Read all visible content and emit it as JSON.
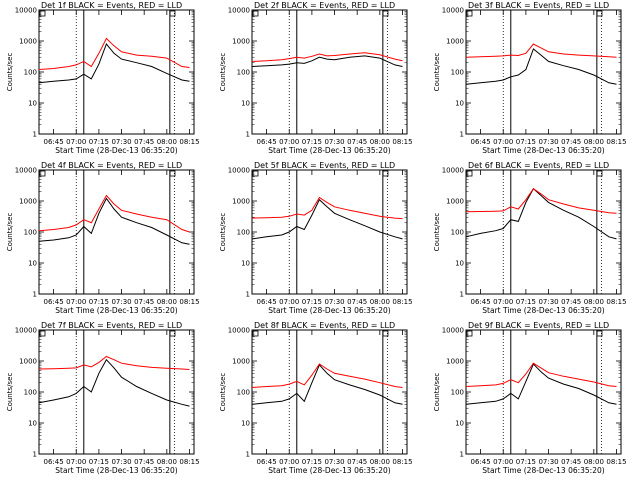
{
  "chart_data": [
    {
      "type": "line",
      "title": "Det 1f BLACK = Events, RED = LLD",
      "xlabel": "Start Time (28-Dec-13 06:35:20)",
      "ylabel": "Counts/sec",
      "xticks": [
        "06:45",
        "07:00",
        "07:15",
        "07:30",
        "07:45",
        "08:00",
        "08:15"
      ],
      "yticks": [
        "1",
        "10",
        "100",
        "1000",
        "10000"
      ],
      "yscale": "log",
      "ylim": [
        1,
        10000
      ],
      "xlim": [
        "06:35:20",
        "08:18:00"
      ],
      "series": [
        {
          "color": "#000000",
          "x": [
            "06:35",
            "06:45",
            "06:55",
            "07:00",
            "07:05",
            "07:10",
            "07:15",
            "07:20",
            "07:25",
            "07:30",
            "07:40",
            "07:50",
            "08:00",
            "08:10",
            "08:15"
          ],
          "values": [
            45,
            50,
            55,
            60,
            85,
            60,
            180,
            800,
            400,
            260,
            200,
            150,
            90,
            55,
            50
          ]
        },
        {
          "color": "#ff0000",
          "x": [
            "06:35",
            "06:45",
            "06:55",
            "07:00",
            "07:05",
            "07:10",
            "07:15",
            "07:20",
            "07:25",
            "07:30",
            "07:40",
            "07:50",
            "08:00",
            "08:10",
            "08:15"
          ],
          "values": [
            120,
            130,
            150,
            170,
            220,
            150,
            400,
            1200,
            700,
            450,
            350,
            320,
            280,
            150,
            140
          ]
        }
      ]
    },
    {
      "type": "line",
      "title": "Det 2f BLACK = Events, RED = LLD",
      "xlabel": "Start Time (28-Dec-13 06:35:20)",
      "ylabel": "Counts/sec",
      "xticks": [
        "06:45",
        "07:00",
        "07:15",
        "07:30",
        "07:45",
        "08:00",
        "08:15"
      ],
      "yticks": [
        "1",
        "10",
        "100",
        "1000",
        "10000"
      ],
      "yscale": "log",
      "ylim": [
        1,
        10000
      ],
      "xlim": [
        "06:35:20",
        "08:18:00"
      ],
      "series": [
        {
          "color": "#000000",
          "x": [
            "06:35",
            "06:45",
            "06:55",
            "07:00",
            "07:05",
            "07:10",
            "07:15",
            "07:20",
            "07:25",
            "07:30",
            "07:40",
            "07:50",
            "08:00",
            "08:10",
            "08:15"
          ],
          "values": [
            150,
            160,
            170,
            180,
            200,
            190,
            230,
            300,
            260,
            250,
            300,
            330,
            280,
            170,
            150
          ]
        },
        {
          "color": "#ff0000",
          "x": [
            "06:35",
            "06:45",
            "06:55",
            "07:00",
            "07:05",
            "07:10",
            "07:15",
            "07:20",
            "07:25",
            "07:30",
            "07:40",
            "07:50",
            "08:00",
            "08:10",
            "08:15"
          ],
          "values": [
            220,
            230,
            250,
            270,
            300,
            280,
            320,
            380,
            330,
            340,
            380,
            420,
            360,
            260,
            230
          ]
        }
      ]
    },
    {
      "type": "line",
      "title": "Det 3f BLACK = Events, RED = LLD",
      "xlabel": "Start Time (28-Dec-13 06:35:20)",
      "ylabel": "Counts/sec",
      "xticks": [
        "06:45",
        "07:00",
        "07:15",
        "07:30",
        "07:45",
        "08:00",
        "08:15"
      ],
      "yticks": [
        "1",
        "10",
        "100",
        "1000",
        "10000"
      ],
      "yscale": "log",
      "ylim": [
        1,
        10000
      ],
      "xlim": [
        "06:35:20",
        "08:18:00"
      ],
      "series": [
        {
          "color": "#000000",
          "x": [
            "06:35",
            "06:45",
            "06:55",
            "07:00",
            "07:05",
            "07:10",
            "07:15",
            "07:20",
            "07:25",
            "07:30",
            "07:40",
            "07:50",
            "08:00",
            "08:10",
            "08:15"
          ],
          "values": [
            40,
            45,
            50,
            55,
            70,
            80,
            120,
            550,
            350,
            220,
            160,
            120,
            80,
            45,
            40
          ]
        },
        {
          "color": "#ff0000",
          "x": [
            "06:35",
            "06:45",
            "06:55",
            "07:00",
            "07:05",
            "07:10",
            "07:15",
            "07:20",
            "07:25",
            "07:30",
            "07:40",
            "07:50",
            "08:00",
            "08:10",
            "08:15"
          ],
          "values": [
            300,
            310,
            320,
            330,
            350,
            340,
            400,
            800,
            600,
            450,
            380,
            350,
            330,
            310,
            300
          ]
        }
      ]
    },
    {
      "type": "line",
      "title": "Det 4f BLACK = Events, RED = LLD",
      "xlabel": "Start Time (28-Dec-13 06:35:20)",
      "ylabel": "Counts/sec",
      "xticks": [
        "06:45",
        "07:00",
        "07:15",
        "07:30",
        "07:45",
        "08:00",
        "08:15"
      ],
      "yticks": [
        "1",
        "10",
        "100",
        "1000",
        "10000"
      ],
      "yscale": "log",
      "ylim": [
        1,
        10000
      ],
      "xlim": [
        "06:35:20",
        "08:18:00"
      ],
      "series": [
        {
          "color": "#000000",
          "x": [
            "06:35",
            "06:45",
            "06:55",
            "07:00",
            "07:05",
            "07:10",
            "07:15",
            "07:20",
            "07:25",
            "07:30",
            "07:40",
            "07:50",
            "08:00",
            "08:10",
            "08:15"
          ],
          "values": [
            50,
            55,
            65,
            80,
            150,
            90,
            400,
            1200,
            550,
            300,
            200,
            140,
            80,
            45,
            40
          ]
        },
        {
          "color": "#ff0000",
          "x": [
            "06:35",
            "06:45",
            "06:55",
            "07:00",
            "07:05",
            "07:10",
            "07:15",
            "07:20",
            "07:25",
            "07:30",
            "07:40",
            "07:50",
            "08:00",
            "08:10",
            "08:15"
          ],
          "values": [
            110,
            120,
            140,
            170,
            250,
            200,
            550,
            1500,
            800,
            500,
            380,
            300,
            250,
            120,
            100
          ]
        }
      ]
    },
    {
      "type": "line",
      "title": "Det 5f BLACK = Events, RED = LLD",
      "xlabel": "Start Time (28-Dec-13 06:35:20)",
      "ylabel": "Counts/sec",
      "xticks": [
        "06:45",
        "07:00",
        "07:15",
        "07:30",
        "07:45",
        "08:00",
        "08:15"
      ],
      "yticks": [
        "1",
        "10",
        "100",
        "1000",
        "10000"
      ],
      "yscale": "log",
      "ylim": [
        1,
        10000
      ],
      "xlim": [
        "06:35:20",
        "08:18:00"
      ],
      "series": [
        {
          "color": "#000000",
          "x": [
            "06:35",
            "06:45",
            "06:55",
            "07:00",
            "07:05",
            "07:10",
            "07:15",
            "07:20",
            "07:25",
            "07:30",
            "07:40",
            "07:50",
            "08:00",
            "08:10",
            "08:15"
          ],
          "values": [
            60,
            70,
            80,
            100,
            150,
            120,
            350,
            1100,
            650,
            400,
            250,
            160,
            100,
            70,
            60
          ]
        },
        {
          "color": "#ff0000",
          "x": [
            "06:35",
            "06:45",
            "06:55",
            "07:00",
            "07:05",
            "07:10",
            "07:15",
            "07:20",
            "07:25",
            "07:30",
            "07:40",
            "07:50",
            "08:00",
            "08:10",
            "08:15"
          ],
          "values": [
            280,
            290,
            300,
            320,
            380,
            350,
            500,
            1300,
            900,
            650,
            500,
            400,
            320,
            280,
            270
          ]
        }
      ]
    },
    {
      "type": "line",
      "title": "Det 6f BLACK = Events, RED = LLD",
      "xlabel": "Start Time (28-Dec-13 06:35:20)",
      "ylabel": "Counts/sec",
      "xticks": [
        "06:45",
        "07:00",
        "07:15",
        "07:30",
        "07:45",
        "08:00",
        "08:15"
      ],
      "yticks": [
        "1",
        "10",
        "100",
        "1000",
        "10000"
      ],
      "yscale": "log",
      "ylim": [
        1,
        10000
      ],
      "xlim": [
        "06:35:20",
        "08:18:00"
      ],
      "series": [
        {
          "color": "#000000",
          "x": [
            "06:35",
            "06:45",
            "06:55",
            "07:00",
            "07:05",
            "07:10",
            "07:15",
            "07:20",
            "07:25",
            "07:30",
            "07:40",
            "07:50",
            "08:00",
            "08:10",
            "08:15"
          ],
          "values": [
            70,
            90,
            110,
            130,
            250,
            220,
            900,
            2500,
            1500,
            900,
            500,
            300,
            150,
            70,
            60
          ]
        },
        {
          "color": "#ff0000",
          "x": [
            "06:35",
            "06:45",
            "06:55",
            "07:00",
            "07:05",
            "07:10",
            "07:15",
            "07:20",
            "07:25",
            "07:30",
            "07:40",
            "07:50",
            "08:00",
            "08:10",
            "08:15"
          ],
          "values": [
            450,
            460,
            470,
            480,
            650,
            550,
            1100,
            2500,
            1700,
            1100,
            800,
            600,
            500,
            420,
            400
          ]
        }
      ]
    },
    {
      "type": "line",
      "title": "Det 7f BLACK = Events, RED = LLD",
      "xlabel": "Start Time (28-Dec-13 06:35:20)",
      "ylabel": "Counts/sec",
      "xticks": [
        "06:45",
        "07:00",
        "07:15",
        "07:30",
        "07:45",
        "08:00",
        "08:15"
      ],
      "yticks": [
        "1",
        "10",
        "100",
        "1000",
        "10000"
      ],
      "yscale": "log",
      "ylim": [
        1,
        10000
      ],
      "xlim": [
        "06:35:20",
        "08:18:00"
      ],
      "series": [
        {
          "color": "#000000",
          "x": [
            "06:35",
            "06:45",
            "06:55",
            "07:00",
            "07:05",
            "07:10",
            "07:15",
            "07:20",
            "07:25",
            "07:30",
            "07:40",
            "07:50",
            "08:00",
            "08:10",
            "08:15"
          ],
          "values": [
            45,
            55,
            70,
            90,
            150,
            100,
            400,
            1100,
            600,
            300,
            150,
            90,
            55,
            40,
            35
          ]
        },
        {
          "color": "#ff0000",
          "x": [
            "06:35",
            "06:45",
            "06:55",
            "07:00",
            "07:05",
            "07:10",
            "07:15",
            "07:20",
            "07:25",
            "07:30",
            "07:40",
            "07:50",
            "08:00",
            "08:10",
            "08:15"
          ],
          "values": [
            550,
            560,
            580,
            600,
            750,
            650,
            900,
            1400,
            1100,
            850,
            700,
            620,
            580,
            550,
            530
          ]
        }
      ]
    },
    {
      "type": "line",
      "title": "Det 8f BLACK = Events, RED = LLD",
      "xlabel": "Start Time (28-Dec-13 06:35:20)",
      "ylabel": "Counts/sec",
      "xticks": [
        "06:45",
        "07:00",
        "07:15",
        "07:30",
        "07:45",
        "08:00",
        "08:15"
      ],
      "yticks": [
        "1",
        "10",
        "100",
        "1000",
        "10000"
      ],
      "yscale": "log",
      "ylim": [
        1,
        10000
      ],
      "xlim": [
        "06:35:20",
        "08:18:00"
      ],
      "series": [
        {
          "color": "#000000",
          "x": [
            "06:35",
            "06:45",
            "06:55",
            "07:00",
            "07:05",
            "07:10",
            "07:15",
            "07:20",
            "07:25",
            "07:30",
            "07:40",
            "07:50",
            "08:00",
            "08:10",
            "08:15"
          ],
          "values": [
            40,
            45,
            50,
            60,
            90,
            50,
            200,
            750,
            400,
            250,
            170,
            120,
            80,
            45,
            40
          ]
        },
        {
          "color": "#ff0000",
          "x": [
            "06:35",
            "06:45",
            "06:55",
            "07:00",
            "07:05",
            "07:10",
            "07:15",
            "07:20",
            "07:25",
            "07:30",
            "07:40",
            "07:50",
            "08:00",
            "08:10",
            "08:15"
          ],
          "values": [
            140,
            150,
            160,
            180,
            220,
            170,
            350,
            800,
            550,
            400,
            320,
            260,
            200,
            150,
            140
          ]
        }
      ]
    },
    {
      "type": "line",
      "title": "Det 9f BLACK = Events, RED = LLD",
      "xlabel": "Start Time (28-Dec-13 06:35:20)",
      "ylabel": "Counts/sec",
      "xticks": [
        "06:45",
        "07:00",
        "07:15",
        "07:30",
        "07:45",
        "08:00",
        "08:15"
      ],
      "yticks": [
        "1",
        "10",
        "100",
        "1000",
        "10000"
      ],
      "yscale": "log",
      "ylim": [
        1,
        10000
      ],
      "xlim": [
        "06:35:20",
        "08:18:00"
      ],
      "series": [
        {
          "color": "#000000",
          "x": [
            "06:35",
            "06:45",
            "06:55",
            "07:00",
            "07:05",
            "07:10",
            "07:15",
            "07:20",
            "07:25",
            "07:30",
            "07:40",
            "07:50",
            "08:00",
            "08:10",
            "08:15"
          ],
          "values": [
            40,
            45,
            50,
            60,
            90,
            60,
            220,
            800,
            450,
            280,
            180,
            130,
            80,
            45,
            40
          ]
        },
        {
          "color": "#ff0000",
          "x": [
            "06:35",
            "06:45",
            "06:55",
            "07:00",
            "07:05",
            "07:10",
            "07:15",
            "07:20",
            "07:25",
            "07:30",
            "07:40",
            "07:50",
            "08:00",
            "08:10",
            "08:15"
          ],
          "values": [
            150,
            160,
            170,
            190,
            250,
            200,
            380,
            850,
            600,
            420,
            320,
            260,
            210,
            160,
            150
          ]
        }
      ]
    }
  ]
}
